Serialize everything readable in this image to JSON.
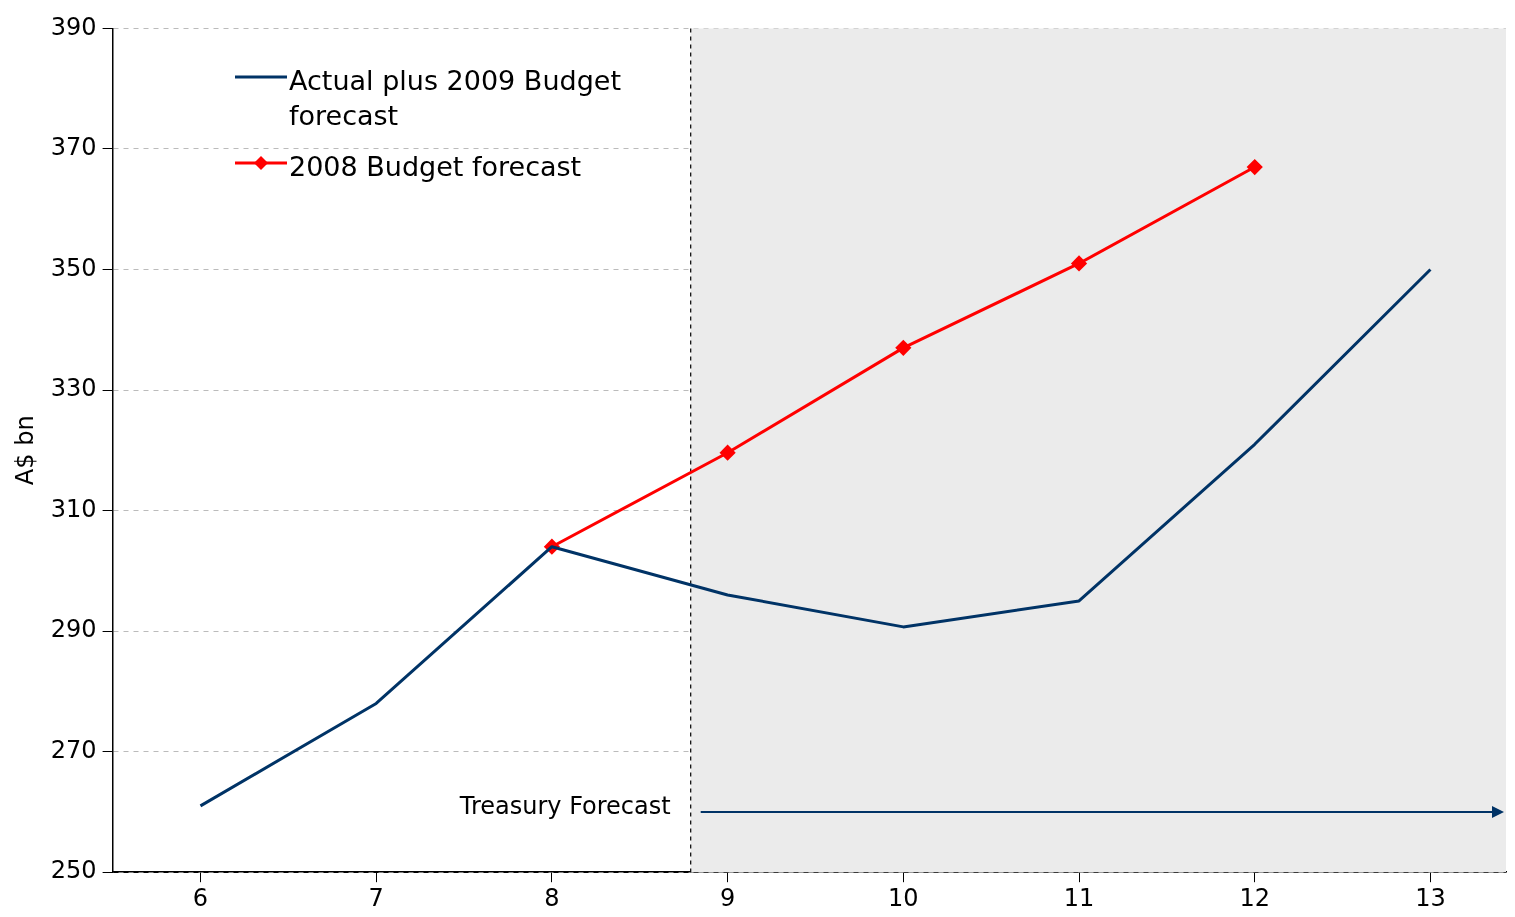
{
  "chart_data": {
    "type": "line",
    "ylabel": "A$ bn",
    "x": [
      6,
      7,
      8,
      9,
      10,
      11,
      12,
      13
    ],
    "xlim": [
      5.5,
      13.43
    ],
    "xticks": [
      6,
      7,
      8,
      9,
      10,
      11,
      12,
      13
    ],
    "ylim": [
      250,
      390
    ],
    "yticks": [
      250,
      270,
      290,
      310,
      330,
      350,
      370,
      390
    ],
    "grid": "y",
    "legend": "top left",
    "series": [
      {
        "name": "Actual plus 2009 Budget forecast",
        "color": "#003366",
        "marker": "none",
        "values": [
          261,
          278,
          304,
          296,
          290.7,
          295,
          321,
          350
        ]
      },
      {
        "name": "2008 Budget forecast",
        "color": "#ff0000",
        "marker": "diamond",
        "values": [
          null,
          null,
          304,
          319.6,
          337,
          351,
          367,
          null
        ]
      }
    ],
    "ref_lines": [
      {
        "axis": "x",
        "value": 8.79,
        "color": "#000000",
        "line_style": "dashed"
      }
    ],
    "bands": [
      {
        "axis": "x",
        "from": 8.79,
        "to": 13.43,
        "color": "#ebebeb",
        "label": "Treasury Forecast"
      }
    ]
  }
}
